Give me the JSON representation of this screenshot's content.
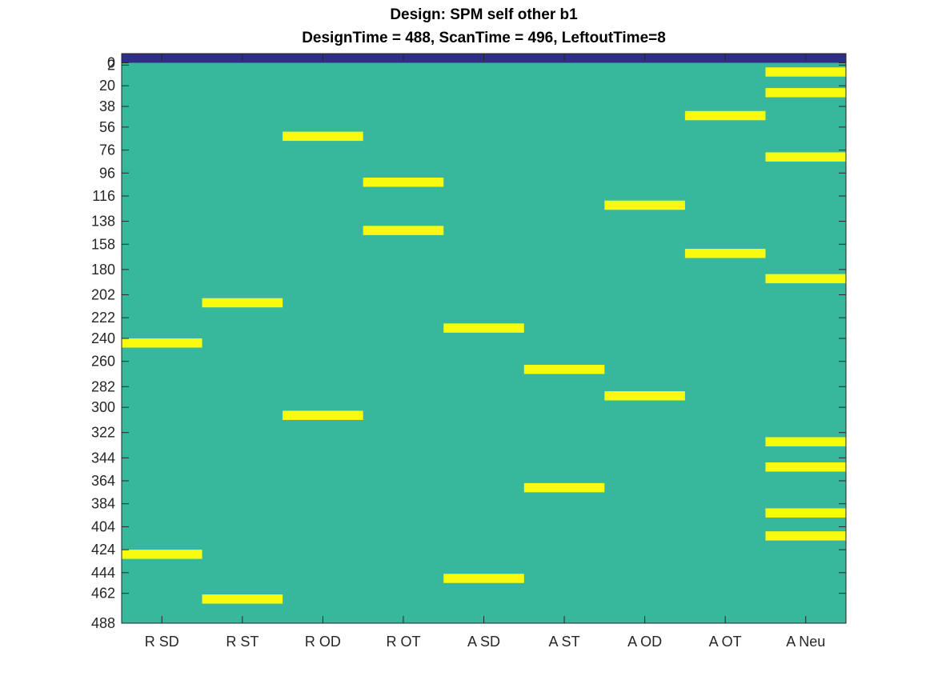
{
  "figure": {
    "title_line1": "Design: SPM self other b1",
    "title_line2": "DesignTime = 488, ScanTime = 496, LeftoutTime=8"
  },
  "chart_data": {
    "type": "heatmap",
    "title": "Design: SPM self other b1",
    "subtitle": "DesignTime = 488, ScanTime = 496, LeftoutTime=8",
    "xlabel": "",
    "ylabel": "",
    "categories": [
      "R SD",
      "R ST",
      "R OD",
      "R OT",
      "A SD",
      "A ST",
      "A OD",
      "A OT",
      "A Neu"
    ],
    "ylim": [
      -8,
      488
    ],
    "y_reversed": true,
    "y_ticks": [
      0,
      2,
      20,
      38,
      56,
      76,
      96,
      116,
      138,
      158,
      180,
      202,
      222,
      240,
      260,
      282,
      300,
      322,
      344,
      364,
      384,
      404,
      424,
      444,
      462,
      488
    ],
    "leftout_band": {
      "y_from": -8,
      "y_to": 0
    },
    "events": [
      {
        "column": "R SD",
        "onsets": [
          240,
          424
        ]
      },
      {
        "column": "R ST",
        "onsets": [
          205,
          463
        ]
      },
      {
        "column": "R OD",
        "onsets": [
          60,
          303
        ]
      },
      {
        "column": "R OT",
        "onsets": [
          100,
          142
        ]
      },
      {
        "column": "A SD",
        "onsets": [
          227,
          445
        ]
      },
      {
        "column": "A ST",
        "onsets": [
          263,
          366
        ]
      },
      {
        "column": "A OD",
        "onsets": [
          120,
          286
        ]
      },
      {
        "column": "A OT",
        "onsets": [
          42,
          162
        ]
      },
      {
        "column": "A Neu",
        "onsets": [
          4,
          22,
          78,
          184,
          326,
          348,
          388,
          408
        ]
      }
    ],
    "event_duration": 8,
    "grid": false,
    "colors": {
      "background": "#37b89d",
      "event": "#f9fb0e",
      "leftout": "#2e2e86",
      "axis": "#262626"
    }
  }
}
